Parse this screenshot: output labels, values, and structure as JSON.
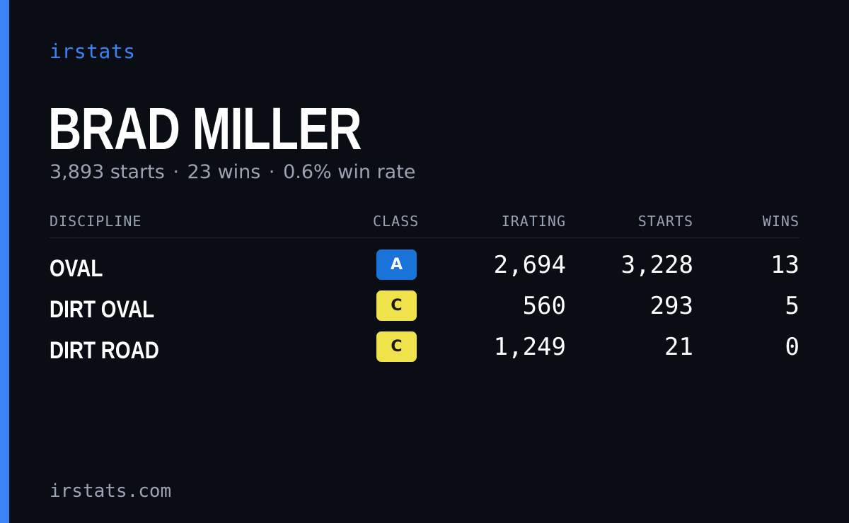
{
  "brand": "irstats",
  "driver": {
    "name": "BRAD MILLER",
    "starts": "3,893 starts",
    "wins": "23 wins",
    "win_rate": "0.6% win rate",
    "separator": "·"
  },
  "table": {
    "headers": {
      "discipline": "DISCIPLINE",
      "class": "CLASS",
      "irating": "IRATING",
      "starts": "STARTS",
      "wins": "WINS"
    },
    "rows": [
      {
        "discipline": "OVAL",
        "class": "A",
        "irating": "2,694",
        "starts": "3,228",
        "wins": "13"
      },
      {
        "discipline": "DIRT OVAL",
        "class": "C",
        "irating": "560",
        "starts": "293",
        "wins": "5"
      },
      {
        "discipline": "DIRT ROAD",
        "class": "C",
        "irating": "1,249",
        "starts": "21",
        "wins": "0"
      }
    ]
  },
  "footer": "irstats.com",
  "colors": {
    "background": "#0a0d14",
    "accent": "#3b82f6",
    "class_a": "#1a73d8",
    "class_c": "#f0e24a",
    "muted_text": "#9aa3b2"
  }
}
